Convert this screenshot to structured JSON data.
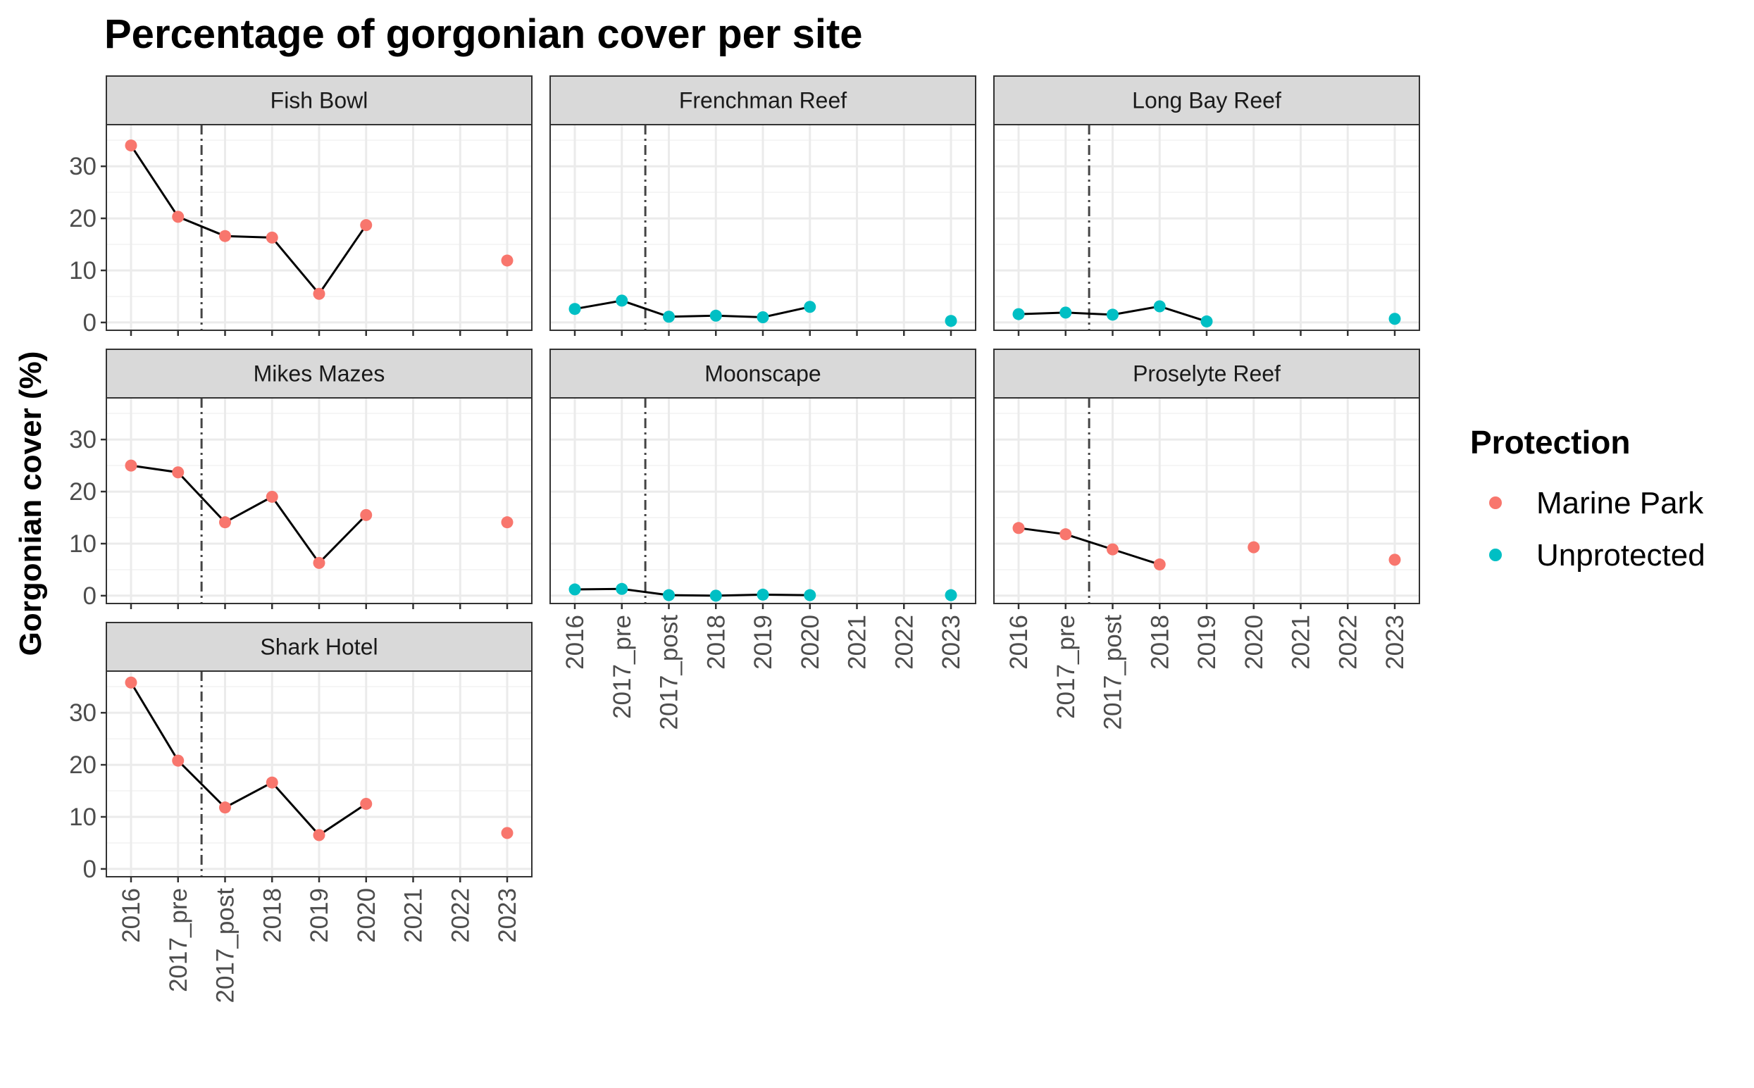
{
  "chart_data": {
    "type": "line",
    "title": "Percentage of gorgonian cover per site",
    "xlabel": "",
    "ylabel": "Gorgonian cover (%)",
    "categories": [
      "2016",
      "2017_pre",
      "2017_post",
      "2018",
      "2019",
      "2020",
      "2021",
      "2022",
      "2023"
    ],
    "y_ticks": [
      0,
      10,
      20,
      30
    ],
    "ylim": [
      -1.5,
      38
    ],
    "reference_line": {
      "position_between": [
        "2017_pre",
        "2017_post"
      ],
      "style": "dashdot"
    },
    "grid": true,
    "legend": {
      "title": "Protection",
      "placement": "right",
      "items": [
        {
          "label": "Marine Park",
          "color": "#F8766D"
        },
        {
          "label": "Unprotected",
          "color": "#00BFC4"
        }
      ]
    },
    "panels": [
      {
        "site": "Fish Bowl",
        "protection": "Marine Park",
        "values": [
          34.0,
          20.3,
          16.6,
          16.3,
          5.5,
          18.7,
          null,
          null,
          11.9
        ]
      },
      {
        "site": "Frenchman Reef",
        "protection": "Unprotected",
        "values": [
          2.6,
          4.2,
          1.1,
          1.3,
          1.0,
          3.0,
          null,
          null,
          0.3
        ]
      },
      {
        "site": "Long Bay Reef",
        "protection": "Unprotected",
        "values": [
          1.6,
          1.9,
          1.5,
          3.1,
          0.2,
          null,
          null,
          null,
          0.7
        ]
      },
      {
        "site": "Mikes Mazes",
        "protection": "Marine Park",
        "values": [
          25.0,
          23.7,
          14.1,
          19.0,
          6.3,
          15.5,
          null,
          null,
          14.1
        ]
      },
      {
        "site": "Moonscape",
        "protection": "Unprotected",
        "values": [
          1.2,
          1.3,
          0.1,
          0.0,
          0.2,
          0.1,
          null,
          null,
          0.1
        ]
      },
      {
        "site": "Proselyte Reef",
        "protection": "Marine Park",
        "values": [
          13.0,
          11.8,
          8.9,
          6.0,
          null,
          9.3,
          null,
          null,
          6.9
        ]
      },
      {
        "site": "Shark Hotel",
        "protection": "Marine Park",
        "values": [
          35.8,
          20.8,
          11.8,
          16.6,
          6.5,
          12.5,
          null,
          null,
          6.9
        ]
      }
    ]
  }
}
